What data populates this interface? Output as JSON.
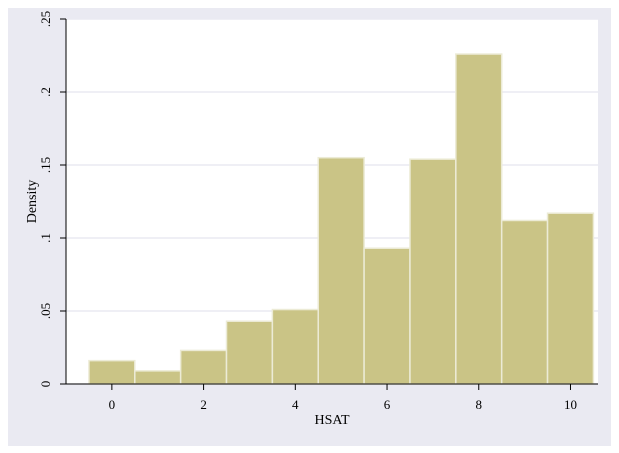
{
  "colors": {
    "outer_background": "#eaeaf2",
    "plot_background": "#ffffff",
    "bar_fill": "#cac486",
    "bar_edge": "#ecebd6",
    "grid": "#eaeaf2",
    "axis": "#000000",
    "text": "#000000"
  },
  "chart_data": {
    "type": "bar",
    "title": "",
    "xlabel": "HSAT",
    "ylabel": "Density",
    "xlim": [
      -1,
      10.6
    ],
    "ylim": [
      0,
      0.25
    ],
    "x_ticks": [
      0,
      2,
      4,
      6,
      8,
      10
    ],
    "x_tick_labels": [
      "0",
      "2",
      "4",
      "6",
      "8",
      "10"
    ],
    "y_ticks": [
      0,
      0.05,
      0.1,
      0.15,
      0.2,
      0.25
    ],
    "y_tick_labels": [
      "0",
      ".05",
      ".1",
      ".15",
      ".2",
      ".25"
    ],
    "grid": true,
    "bin_width": 1,
    "categories": [
      "0",
      "1",
      "2",
      "3",
      "4",
      "5",
      "6",
      "7",
      "8",
      "9",
      "10"
    ],
    "x": [
      0,
      1,
      2,
      3,
      4,
      5,
      6,
      7,
      8,
      9,
      10
    ],
    "values": [
      0.016,
      0.009,
      0.023,
      0.043,
      0.051,
      0.155,
      0.093,
      0.154,
      0.226,
      0.112,
      0.117
    ]
  }
}
